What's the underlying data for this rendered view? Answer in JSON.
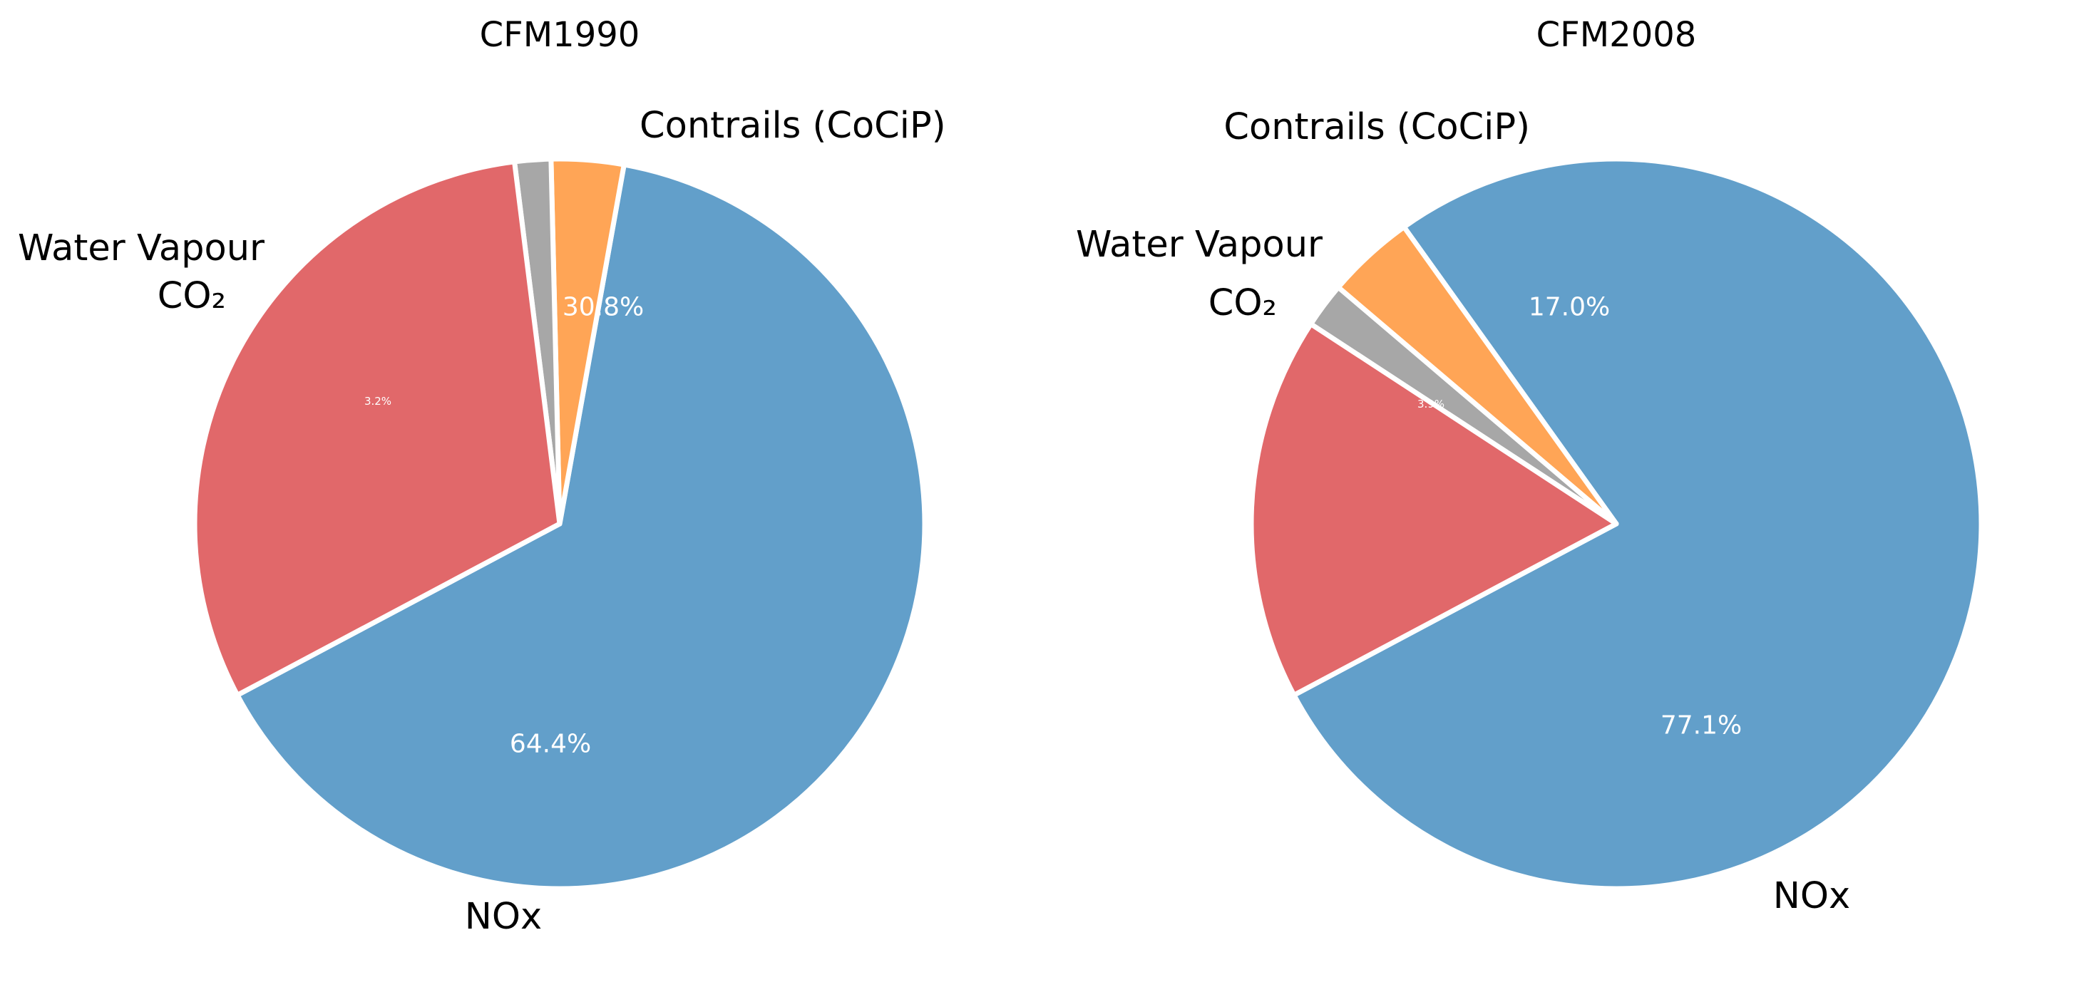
{
  "chart_data": [
    {
      "type": "pie",
      "title": "CFM1990",
      "slices": [
        {
          "label": "NOx",
          "value": 64.4,
          "pct_label": "64.4%",
          "color": "#629fca"
        },
        {
          "label": "CO₂",
          "value": 3.2,
          "pct_label": "3.2%",
          "color": "#ffa556"
        },
        {
          "label": "Water Vapour",
          "value": 1.6,
          "pct_label": "",
          "color": "#a7a7a7"
        },
        {
          "label": "Contrails (CoCiP)",
          "value": 30.8,
          "pct_label": "30.8%",
          "color": "#e1686a"
        }
      ],
      "start_angle": 208,
      "direction": "counterclockwise",
      "slice_edge_color": "#ffffff"
    },
    {
      "type": "pie",
      "title": "CFM2008",
      "slices": [
        {
          "label": "NOx",
          "value": 77.1,
          "pct_label": "77.1%",
          "color": "#629fca"
        },
        {
          "label": "CO₂",
          "value": 3.9,
          "pct_label": "3.9%",
          "color": "#ffa556"
        },
        {
          "label": "Water Vapour",
          "value": 2.0,
          "pct_label": "",
          "color": "#a7a7a7"
        },
        {
          "label": "Contrails (CoCiP)",
          "value": 17.0,
          "pct_label": "17.0%",
          "color": "#e1686a"
        }
      ],
      "start_angle": 208,
      "direction": "counterclockwise",
      "slice_edge_color": "#ffffff"
    }
  ]
}
